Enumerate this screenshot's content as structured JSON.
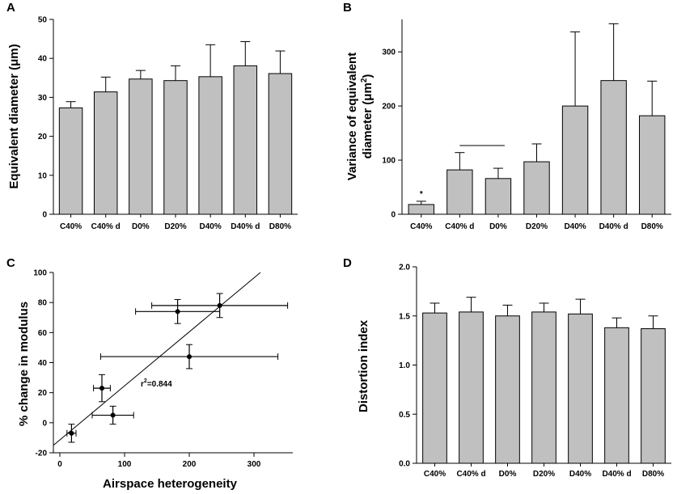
{
  "chart_data": [
    {
      "panel": "A",
      "type": "bar",
      "categories": [
        "C40%",
        "C40% d",
        "D0%",
        "D20%",
        "D40%",
        "D40% d",
        "D80%"
      ],
      "values": [
        27.3,
        31.4,
        34.7,
        34.3,
        35.3,
        38.1,
        36.1
      ],
      "errors": [
        1.6,
        3.8,
        2.2,
        3.8,
        8.2,
        6.2,
        5.8
      ],
      "xlabel": "",
      "ylabel": "Equivalent diameter (μm)",
      "ylim": [
        0,
        50
      ],
      "yticks": [
        "0",
        "10",
        "20",
        "30",
        "40",
        "50"
      ],
      "bar_color": "#c0c0c0"
    },
    {
      "panel": "B",
      "type": "bar",
      "categories": [
        "C40%",
        "C40% d",
        "D0%",
        "D20%",
        "D40%",
        "D40% d",
        "D80%"
      ],
      "values": [
        18,
        82,
        66,
        97,
        200,
        247,
        182
      ],
      "errors": [
        6,
        32,
        19,
        33,
        137,
        105,
        64
      ],
      "xlabel": "",
      "ylabel_line1": "Variance of equivalent",
      "ylabel_line2_pre": "diameter (μm",
      "ylabel_sup": "2",
      "ylabel_line2_post": ")",
      "ylim": [
        0,
        360
      ],
      "yticks": [
        "0",
        "100",
        "200",
        "300"
      ],
      "annotation_star": "*",
      "bracket_categories": [
        "C40% d",
        "D0%"
      ],
      "bracket_value": 127,
      "bar_color": "#c0c0c0"
    },
    {
      "panel": "C",
      "type": "scatter",
      "points": [
        {
          "x": 18,
          "y": -7,
          "xerr": 7,
          "yerr": 6
        },
        {
          "x": 65,
          "y": 23,
          "xerr": 13,
          "yerr": 9
        },
        {
          "x": 82,
          "y": 5,
          "xerr": 32,
          "yerr": 6
        },
        {
          "x": 200,
          "y": 44,
          "xerr": 137,
          "yerr": 8
        },
        {
          "x": 182,
          "y": 74,
          "xerr": 65,
          "yerr": 8
        },
        {
          "x": 247,
          "y": 78,
          "xerr": 105,
          "yerr": 8
        }
      ],
      "fit_line": {
        "x1": -10,
        "y1": -15,
        "x2": 310,
        "y2": 100
      },
      "xlabel": "Airspace heterogeneity",
      "ylabel": "% change in modulus",
      "xlim": [
        -10,
        360
      ],
      "ylim": [
        -20,
        100
      ],
      "xticks": [
        "0",
        "100",
        "200",
        "300"
      ],
      "yticks": [
        "-20",
        "0",
        "20",
        "40",
        "60",
        "80",
        "100"
      ],
      "annotation_pre": "r",
      "annotation_sup": "2",
      "annotation_post": "=0.844",
      "annotation_x": 125,
      "annotation_y": 24
    },
    {
      "panel": "D",
      "type": "bar",
      "categories": [
        "C40%",
        "C40% d",
        "D0%",
        "D20%",
        "D40%",
        "D40% d",
        "D80%"
      ],
      "values": [
        1.53,
        1.54,
        1.5,
        1.54,
        1.52,
        1.38,
        1.37
      ],
      "errors": [
        0.1,
        0.15,
        0.11,
        0.09,
        0.15,
        0.1,
        0.13
      ],
      "xlabel": "",
      "ylabel": "Distortion index",
      "ylim": [
        0,
        2.0
      ],
      "yticks": [
        "0.0",
        "0.5",
        "1.0",
        "1.5",
        "2.0"
      ],
      "bar_color": "#c0c0c0"
    }
  ]
}
